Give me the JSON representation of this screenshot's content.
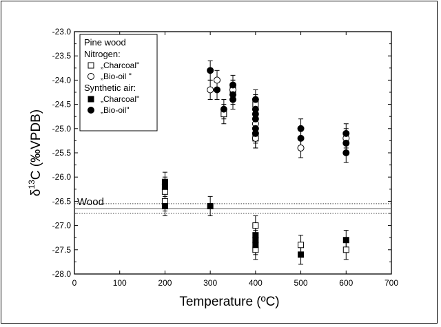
{
  "chart_data": {
    "type": "scatter",
    "xlabel": "Temperature (ºC)",
    "ylabel_main": "δ",
    "ylabel_sup": "13",
    "ylabel_rest": "C (‰VPDB)",
    "xlim": [
      0,
      700
    ],
    "ylim": [
      -28.0,
      -23.0
    ],
    "x_ticks": [
      0,
      100,
      200,
      300,
      400,
      500,
      600,
      700
    ],
    "y_ticks": [
      -23.0,
      -23.5,
      -24.0,
      -24.5,
      -25.0,
      -25.5,
      -26.0,
      -26.5,
      -27.0,
      -27.5,
      -28.0
    ],
    "y_tick_labels": [
      "-23.0",
      "-23.5",
      "-24.0",
      "-24.5",
      "-25.0",
      "-25.5",
      "-26.0",
      "-26.5",
      "-27.0",
      "-27.5",
      "-28.0"
    ],
    "grid": false,
    "reference_line": {
      "label": "Wood",
      "value": -26.65,
      "band": [
        -26.55,
        -26.75
      ]
    },
    "legend": {
      "position": "top-left",
      "title": "Pine wood",
      "groups": [
        {
          "heading": "Nitrogen:",
          "entries": [
            {
              "label": "„Charcoal\"",
              "marker": "square-open"
            },
            {
              "label": "„Bio-oil \"",
              "marker": "circle-open"
            }
          ]
        },
        {
          "heading": "Synthetic air:",
          "entries": [
            {
              "label": "„Charcoal\"",
              "marker": "square-filled"
            },
            {
              "label": "„Bio-oil\"",
              "marker": "circle-filled"
            }
          ]
        }
      ]
    },
    "series": [
      {
        "name": "Nitrogen: „Charcoal\"",
        "marker": "square-open",
        "points": [
          {
            "x": 200,
            "y": -26.3,
            "err": 0.2
          },
          {
            "x": 200,
            "y": -26.5,
            "err": 0.2
          },
          {
            "x": 330,
            "y": -24.7,
            "err": 0.2
          },
          {
            "x": 350,
            "y": -24.2,
            "err": 0.2
          },
          {
            "x": 400,
            "y": -24.5,
            "err": 0.2
          },
          {
            "x": 400,
            "y": -25.2,
            "err": 0.2
          },
          {
            "x": 400,
            "y": -27.0,
            "err": 0.2
          },
          {
            "x": 400,
            "y": -27.5,
            "err": 0.2
          },
          {
            "x": 500,
            "y": -27.4,
            "err": 0.2
          },
          {
            "x": 600,
            "y": -27.5,
            "err": 0.2
          }
        ]
      },
      {
        "name": "Nitrogen: „Bio-oil \"",
        "marker": "circle-open",
        "points": [
          {
            "x": 300,
            "y": -24.2,
            "err": 0.2
          },
          {
            "x": 315,
            "y": -24.0,
            "err": 0.2
          },
          {
            "x": 350,
            "y": -24.2,
            "err": 0.2
          },
          {
            "x": 400,
            "y": -24.9,
            "err": 0.2
          },
          {
            "x": 400,
            "y": -25.2,
            "err": 0.2
          },
          {
            "x": 500,
            "y": -25.4,
            "err": 0.2
          },
          {
            "x": 600,
            "y": -25.2,
            "err": 0.2
          }
        ]
      },
      {
        "name": "Synthetic air: „Charcoal\"",
        "marker": "square-filled",
        "points": [
          {
            "x": 200,
            "y": -26.1,
            "err": 0.2
          },
          {
            "x": 200,
            "y": -26.2,
            "err": 0.2
          },
          {
            "x": 200,
            "y": -26.6,
            "err": 0.2
          },
          {
            "x": 300,
            "y": -26.6,
            "err": 0.2
          },
          {
            "x": 400,
            "y": -27.2,
            "err": 0.2
          },
          {
            "x": 400,
            "y": -27.3,
            "err": 0.2
          },
          {
            "x": 400,
            "y": -27.4,
            "err": 0.2
          },
          {
            "x": 500,
            "y": -27.6,
            "err": 0.2
          },
          {
            "x": 600,
            "y": -27.3,
            "err": 0.2
          }
        ]
      },
      {
        "name": "Synthetic air: „Bio-oil\"",
        "marker": "circle-filled",
        "points": [
          {
            "x": 300,
            "y": -23.8,
            "err": 0.2
          },
          {
            "x": 315,
            "y": -24.2,
            "err": 0.2
          },
          {
            "x": 330,
            "y": -24.6,
            "err": 0.2
          },
          {
            "x": 350,
            "y": -24.1,
            "err": 0.2
          },
          {
            "x": 350,
            "y": -24.3,
            "err": 0.2
          },
          {
            "x": 350,
            "y": -24.4,
            "err": 0.2
          },
          {
            "x": 400,
            "y": -24.4,
            "err": 0.2
          },
          {
            "x": 400,
            "y": -24.6,
            "err": 0.2
          },
          {
            "x": 400,
            "y": -24.7,
            "err": 0.2
          },
          {
            "x": 400,
            "y": -24.8,
            "err": 0.2
          },
          {
            "x": 400,
            "y": -25.0,
            "err": 0.2
          },
          {
            "x": 400,
            "y": -25.1,
            "err": 0.2
          },
          {
            "x": 500,
            "y": -25.0,
            "err": 0.2
          },
          {
            "x": 500,
            "y": -25.2,
            "err": 0.2
          },
          {
            "x": 600,
            "y": -25.1,
            "err": 0.2
          },
          {
            "x": 600,
            "y": -25.3,
            "err": 0.2
          },
          {
            "x": 600,
            "y": -25.5,
            "err": 0.2
          }
        ]
      }
    ]
  }
}
